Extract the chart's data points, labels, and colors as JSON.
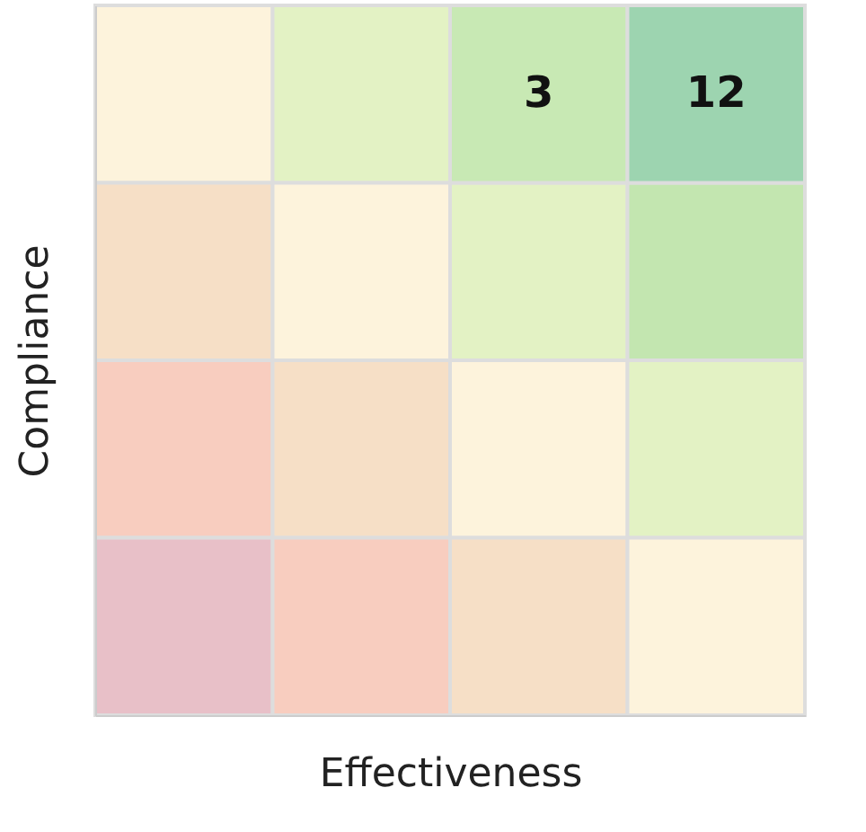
{
  "chart_data": {
    "type": "other",
    "xlabel": "Effectiveness",
    "ylabel": "Compliance",
    "categories": [
      null,
      null,
      null,
      null
    ],
    "values": [
      null,
      null,
      3,
      12
    ],
    "colors": [
      [
        "#fdf3dc",
        "#e3f2c4",
        "#c8e9b4",
        "#9dd4b0"
      ],
      [
        "#f6dfc6",
        "#fdf3dc",
        "#e3f2c4",
        "#c3e6b0"
      ],
      [
        "#f8cdbf",
        "#f6dfc6",
        "#fdf3dc",
        "#e3f2c4"
      ],
      [
        "#e8c0c8",
        "#f8cdbf",
        "#f6dfc6",
        "#fdf3dc"
      ]
    ],
    "data_labels": true
  }
}
